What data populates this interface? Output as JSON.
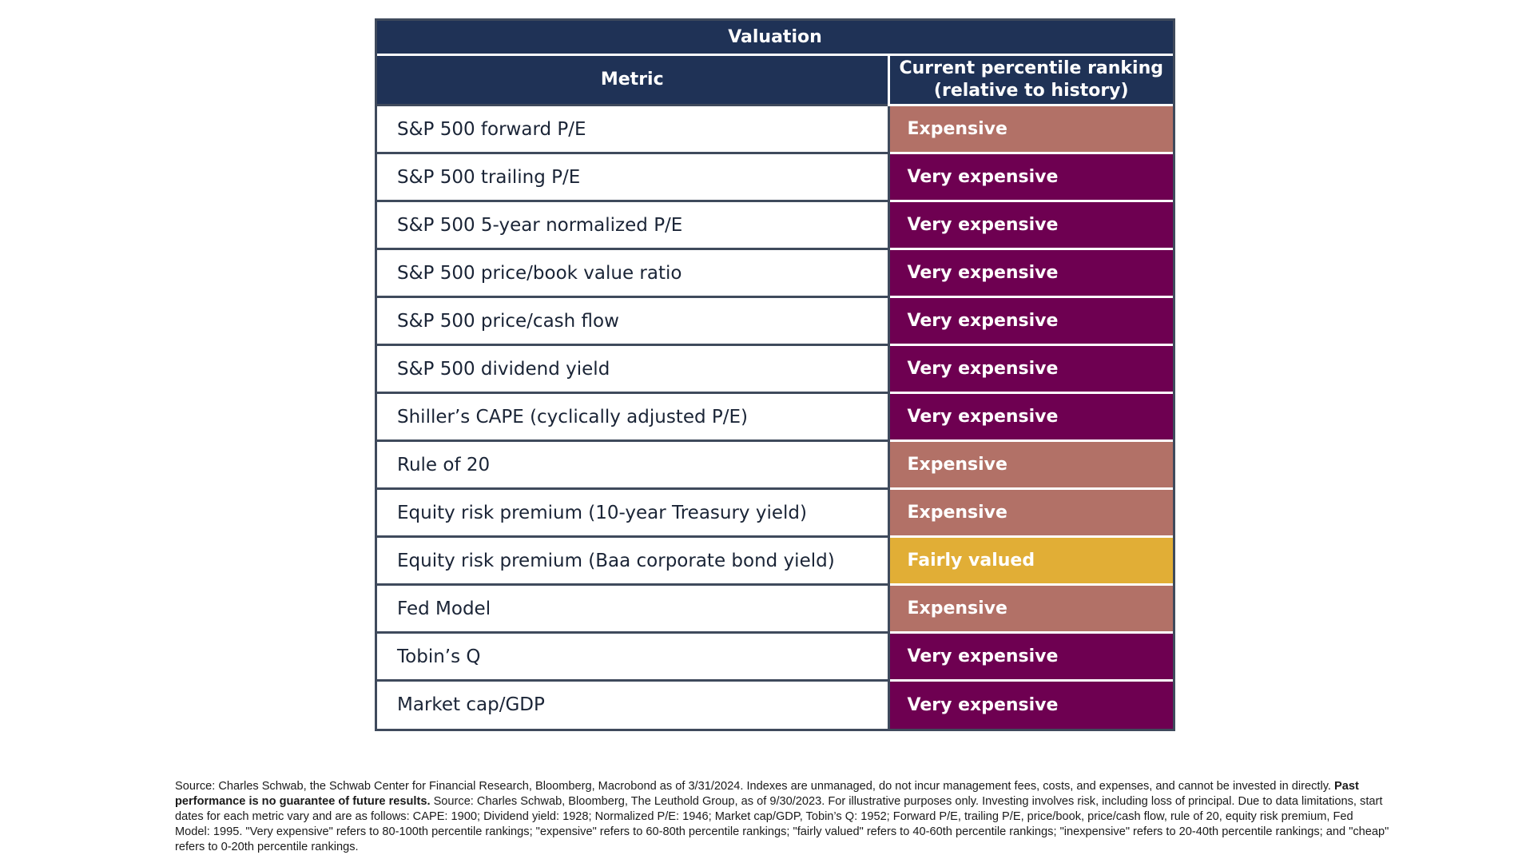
{
  "table": {
    "title": "Valuation",
    "headers": {
      "metric": "Metric",
      "ranking_line1": "Current percentile ranking",
      "ranking_line2": "(relative to history)"
    },
    "colors": {
      "header_bg": "#1f3256",
      "expensive": "#b27167",
      "very_expensive": "#6e0051",
      "fairly_valued": "#e1ae36"
    },
    "rows": [
      {
        "metric": "S&P 500 forward P/E",
        "ranking": "Expensive",
        "level": "expensive"
      },
      {
        "metric": "S&P 500 trailing P/E",
        "ranking": "Very expensive",
        "level": "very_expensive"
      },
      {
        "metric": "S&P 500 5-year normalized P/E",
        "ranking": "Very expensive",
        "level": "very_expensive"
      },
      {
        "metric": "S&P 500 price/book value ratio",
        "ranking": "Very expensive",
        "level": "very_expensive"
      },
      {
        "metric": "S&P 500 price/cash flow",
        "ranking": "Very expensive",
        "level": "very_expensive"
      },
      {
        "metric": "S&P 500 dividend yield",
        "ranking": "Very expensive",
        "level": "very_expensive"
      },
      {
        "metric": "Shiller’s CAPE (cyclically adjusted P/E)",
        "ranking": "Very expensive",
        "level": "very_expensive"
      },
      {
        "metric": "Rule of 20",
        "ranking": "Expensive",
        "level": "expensive"
      },
      {
        "metric": "Equity risk premium (10-year Treasury yield)",
        "ranking": "Expensive",
        "level": "expensive"
      },
      {
        "metric": "Equity risk premium (Baa corporate bond yield)",
        "ranking": "Fairly valued",
        "level": "fairly_valued"
      },
      {
        "metric": "Fed Model",
        "ranking": "Expensive",
        "level": "expensive"
      },
      {
        "metric": "Tobin’s Q",
        "ranking": "Very expensive",
        "level": "very_expensive"
      },
      {
        "metric": "Market cap/GDP",
        "ranking": "Very expensive",
        "level": "very_expensive"
      }
    ]
  },
  "footnote": {
    "part1": "Source: Charles Schwab, the Schwab Center for Financial Research, Bloomberg, Macrobond as of 3/31/2024. Indexes are unmanaged, do not incur management fees, costs, and expenses, and cannot be invested in directly. ",
    "bold": "Past performance is no guarantee of future results.",
    "part2": " Source: Charles Schwab, Bloomberg, The Leuthold Group, as of 9/30/2023. For illustrative purposes only. Investing involves risk, including loss of principal. Due to data limitations, start dates for each metric vary and are as follows: CAPE: 1900; Dividend yield: 1928; Normalized P/E: 1946; Market cap/GDP, Tobin’s Q: 1952; Forward P/E, trailing P/E, price/book, price/cash flow, rule of 20, equity risk premium, Fed Model: 1995. \"Very expensive\" refers to 80-100th percentile rankings; \"expensive\" refers to 60-80th percentile rankings; \"fairly valued\" refers to 40-60th percentile rankings; \"inexpensive\" refers to 20-40th percentile rankings; and \"cheap\" refers to 0-20th percentile rankings."
  }
}
